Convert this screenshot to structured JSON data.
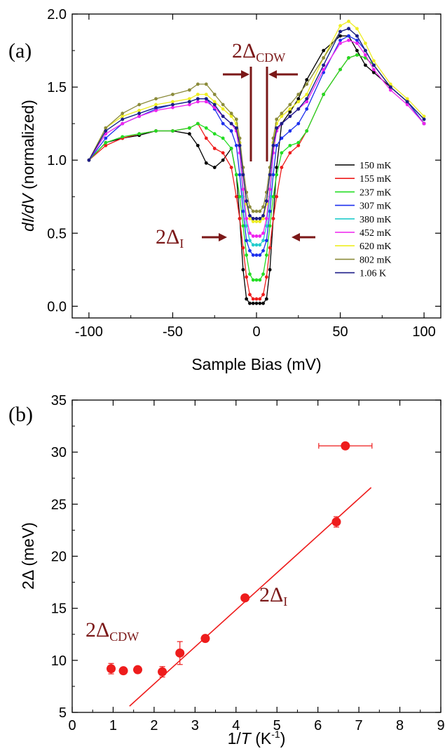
{
  "chart_data": [
    {
      "panel_label": "(a)",
      "type": "line",
      "xlabel": "Sample Bias (mV)",
      "ylabel": {
        "prefix": "",
        "italic": "dI/dV",
        "suffix": " (normalized)"
      },
      "xlim": [
        -110,
        110
      ],
      "ylim": [
        -0.08,
        2.0
      ],
      "xticks": [
        -100,
        -50,
        0,
        50,
        100
      ],
      "xtick_labels": [
        "-100",
        "-50",
        "0",
        "50",
        "100"
      ],
      "yticks": [
        0.0,
        0.5,
        1.0,
        1.5,
        2.0
      ],
      "ytick_labels": [
        "0.0",
        "0.5",
        "1.0",
        "1.5",
        "2.0"
      ],
      "grid": false,
      "legend_position": "lower-right",
      "x": [
        -100,
        -90,
        -80,
        -70,
        -60,
        -50,
        -40,
        -35,
        -30,
        -25,
        -20,
        -15,
        -12,
        -10,
        -8,
        -6,
        -4,
        -2,
        0,
        2,
        4,
        6,
        8,
        10,
        12,
        15,
        20,
        25,
        30,
        40,
        50,
        55,
        60,
        65,
        70,
        80,
        90,
        100
      ],
      "series": [
        {
          "name": "150 mK",
          "color": "#000000",
          "y": [
            1.0,
            1.12,
            1.15,
            1.17,
            1.2,
            1.2,
            1.18,
            1.1,
            0.98,
            0.95,
            1.0,
            1.08,
            0.9,
            0.6,
            0.25,
            0.05,
            0.02,
            0.02,
            0.02,
            0.02,
            0.02,
            0.05,
            0.25,
            0.6,
            0.95,
            1.25,
            1.33,
            1.42,
            1.55,
            1.75,
            1.85,
            1.85,
            1.75,
            1.65,
            1.6,
            1.5,
            1.4,
            1.25
          ]
        },
        {
          "name": "155 mK",
          "color": "#ee1c1c",
          "y": [
            1.0,
            1.1,
            1.15,
            1.18,
            1.2,
            1.2,
            1.22,
            1.25,
            1.15,
            1.08,
            1.05,
            0.95,
            0.75,
            0.6,
            0.4,
            0.2,
            0.08,
            0.05,
            0.05,
            0.05,
            0.08,
            0.2,
            0.4,
            0.6,
            0.75,
            0.95,
            1.05,
            1.1,
            1.2,
            1.45,
            1.62,
            1.7,
            1.72,
            1.7,
            1.65,
            1.5,
            1.4,
            1.25
          ]
        },
        {
          "name": "237 mK",
          "color": "#22dd22",
          "y": [
            1.0,
            1.12,
            1.16,
            1.18,
            1.2,
            1.2,
            1.22,
            1.25,
            1.22,
            1.18,
            1.15,
            1.08,
            0.9,
            0.75,
            0.55,
            0.35,
            0.22,
            0.18,
            0.18,
            0.18,
            0.22,
            0.35,
            0.55,
            0.75,
            0.9,
            1.05,
            1.1,
            1.12,
            1.2,
            1.45,
            1.62,
            1.7,
            1.72,
            1.7,
            1.65,
            1.5,
            1.4,
            1.25
          ]
        },
        {
          "name": "307 mK",
          "color": "#1c2fee",
          "y": [
            1.0,
            1.15,
            1.25,
            1.3,
            1.35,
            1.38,
            1.4,
            1.42,
            1.42,
            1.35,
            1.25,
            1.2,
            1.1,
            0.9,
            0.65,
            0.45,
            0.38,
            0.35,
            0.35,
            0.35,
            0.38,
            0.45,
            0.65,
            0.9,
            1.1,
            1.15,
            1.2,
            1.25,
            1.35,
            1.6,
            1.82,
            1.85,
            1.82,
            1.75,
            1.65,
            1.5,
            1.4,
            1.25
          ]
        },
        {
          "name": "380 mK",
          "color": "#22cccc",
          "y": [
            1.0,
            1.2,
            1.28,
            1.32,
            1.36,
            1.38,
            1.4,
            1.42,
            1.42,
            1.38,
            1.3,
            1.25,
            1.2,
            1.05,
            0.75,
            0.55,
            0.45,
            0.42,
            0.42,
            0.42,
            0.45,
            0.55,
            0.75,
            1.05,
            1.2,
            1.25,
            1.3,
            1.35,
            1.42,
            1.65,
            1.88,
            1.9,
            1.85,
            1.75,
            1.65,
            1.5,
            1.4,
            1.28
          ]
        },
        {
          "name": "452 mK",
          "color": "#ee22ee",
          "y": [
            1.0,
            1.18,
            1.25,
            1.3,
            1.34,
            1.36,
            1.38,
            1.4,
            1.4,
            1.36,
            1.3,
            1.25,
            1.2,
            1.05,
            0.8,
            0.6,
            0.5,
            0.48,
            0.48,
            0.48,
            0.5,
            0.6,
            0.8,
            1.05,
            1.2,
            1.25,
            1.3,
            1.35,
            1.4,
            1.62,
            1.8,
            1.82,
            1.8,
            1.72,
            1.62,
            1.48,
            1.38,
            1.25
          ]
        },
        {
          "name": "620 mK",
          "color": "#eeee22",
          "y": [
            1.0,
            1.22,
            1.3,
            1.34,
            1.38,
            1.4,
            1.42,
            1.45,
            1.45,
            1.4,
            1.35,
            1.3,
            1.25,
            1.12,
            0.9,
            0.7,
            0.6,
            0.58,
            0.58,
            0.58,
            0.6,
            0.7,
            0.9,
            1.12,
            1.25,
            1.3,
            1.35,
            1.4,
            1.45,
            1.7,
            1.92,
            1.95,
            1.9,
            1.8,
            1.68,
            1.52,
            1.42,
            1.3
          ]
        },
        {
          "name": "802 mK",
          "color": "#8b8b3a",
          "y": [
            1.0,
            1.22,
            1.32,
            1.38,
            1.42,
            1.45,
            1.48,
            1.52,
            1.52,
            1.45,
            1.38,
            1.32,
            1.28,
            1.15,
            0.95,
            0.78,
            0.68,
            0.65,
            0.65,
            0.65,
            0.68,
            0.78,
            0.95,
            1.15,
            1.28,
            1.32,
            1.38,
            1.45,
            1.52,
            1.7,
            1.88,
            1.9,
            1.85,
            1.75,
            1.65,
            1.5,
            1.4,
            1.28
          ]
        },
        {
          "name": "1.06 K",
          "color": "#1c1c88",
          "y": [
            1.0,
            1.2,
            1.28,
            1.32,
            1.36,
            1.38,
            1.4,
            1.42,
            1.42,
            1.38,
            1.3,
            1.25,
            1.22,
            1.1,
            0.9,
            0.72,
            0.62,
            0.6,
            0.6,
            0.6,
            0.62,
            0.72,
            0.9,
            1.1,
            1.22,
            1.25,
            1.3,
            1.35,
            1.42,
            1.65,
            1.88,
            1.9,
            1.85,
            1.75,
            1.65,
            1.5,
            1.4,
            1.28
          ]
        }
      ],
      "annotations": {
        "cdw_main": "2Δ",
        "cdw_sub": "CDW",
        "i_main": "2Δ",
        "i_sub": "I",
        "arrow_color": "#7b1818"
      }
    },
    {
      "panel_label": "(b)",
      "type": "scatter",
      "xlabel": {
        "prefix": "1/",
        "italic": "T",
        "suffix": " (K",
        "sup": "-1",
        "end": ")"
      },
      "ylabel": "2Δ (meV)",
      "xlim": [
        0,
        9
      ],
      "ylim": [
        5,
        35
      ],
      "xticks": [
        0,
        1,
        2,
        3,
        4,
        5,
        6,
        7,
        8,
        9
      ],
      "xtick_labels": [
        "0",
        "1",
        "2",
        "3",
        "4",
        "5",
        "6",
        "7",
        "8",
        "9"
      ],
      "yticks": [
        5,
        10,
        15,
        20,
        25,
        30,
        35
      ],
      "ytick_labels": [
        "5",
        "10",
        "15",
        "20",
        "25",
        "30",
        "35"
      ],
      "grid": false,
      "marker_color": "#ee1c1c",
      "points": [
        {
          "x": 0.95,
          "y": 9.2,
          "yerr": 0.5,
          "xerr": 0
        },
        {
          "x": 1.25,
          "y": 9.0,
          "yerr": 0.3,
          "xerr": 0
        },
        {
          "x": 1.6,
          "y": 9.1,
          "yerr": 0.3,
          "xerr": 0
        },
        {
          "x": 2.2,
          "y": 8.9,
          "yerr": 0.5,
          "xerr": 0
        },
        {
          "x": 2.63,
          "y": 10.7,
          "yerr": 1.1,
          "xerr": 0
        },
        {
          "x": 3.25,
          "y": 12.1,
          "yerr": 0.3,
          "xerr": 0
        },
        {
          "x": 4.22,
          "y": 16.0,
          "yerr": 0.3,
          "xerr": 0
        },
        {
          "x": 6.45,
          "y": 23.3,
          "yerr": 0.5,
          "xerr": 0
        },
        {
          "x": 6.67,
          "y": 30.6,
          "yerr": 0,
          "xerr": 0.65
        }
      ],
      "fit_line": {
        "x": [
          1.4,
          7.3
        ],
        "y": [
          5.6,
          26.6
        ]
      },
      "annotations": {
        "cdw_main": "2Δ",
        "cdw_sub": "CDW",
        "i_main": "2Δ",
        "i_sub": "I"
      }
    }
  ]
}
